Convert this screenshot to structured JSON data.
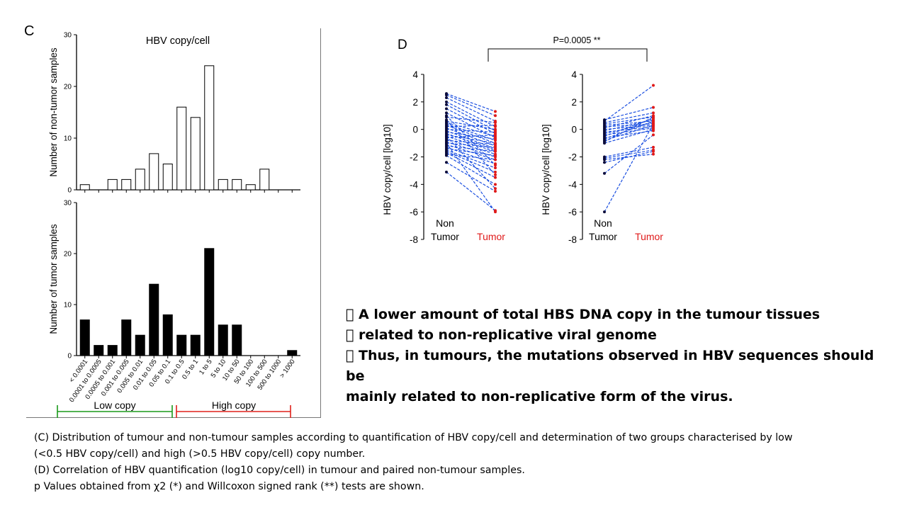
{
  "panel_c": {
    "letter": "C",
    "legend_low": "Low copy",
    "legend_high": "High copy",
    "low_color": "#1a9a1a",
    "high_color": "#e0201a"
  },
  "panel_d": {
    "letter": "D",
    "pvalue": "P=0.0005 **",
    "xlabel_non": [
      "Non",
      "Tumor"
    ],
    "xlabel_tumor": "Tumor",
    "tumor_color": "#e01a1a",
    "line_color": "#1b4fe0"
  },
  "bullets": [
    " A lower amount of total HBS DNA copy in the tumour tissues",
    " related to non-replicative viral genome",
    " Thus, in tumours, the mutations observed in HBV sequences should be",
    "mainly related to non-replicative form of the virus."
  ],
  "caption": [
    "(C) Distribution of tumour and non-tumour samples according to quantification of HBV copy/cell and determination of two groups characterised by low",
    "(<0.5 HBV copy/cell) and high (>0.5 HBV copy/cell) copy number.",
    "(D) Correlation of HBV quantification (log10 copy/cell) in tumour and paired non-tumour samples.",
    "p Values obtained from χ2 (*) and Willcoxon signed rank (**) tests are shown."
  ],
  "chart_data": [
    {
      "type": "bar",
      "title": "HBV copy/cell",
      "ylabel": "Number of non-tumor samples",
      "categories": [
        "< 0.0001",
        "0.0001 to 0.0005",
        "0.0005 to 0.001",
        "0.001 to 0.005",
        "0.005 to 0.01",
        "0.01 to 0.05",
        "0.05 to 0.1",
        "0.1 to 0.5",
        "0.5 to 1",
        "1 to 5",
        "5 to 10",
        "10 to 50",
        "50 to 100",
        "100 to 500",
        "500 to 1000",
        "> 1000"
      ],
      "values": [
        1,
        0,
        2,
        2,
        4,
        7,
        5,
        16,
        14,
        24,
        2,
        2,
        1,
        4,
        0,
        0
      ],
      "ylim": [
        0,
        30
      ],
      "yticks": [
        0,
        10,
        20,
        30
      ],
      "fill": "#ffffff"
    },
    {
      "type": "bar",
      "ylabel": "Number of tumor samples",
      "categories": [
        "< 0.0001",
        "0.0001 to 0.0005",
        "0.0005 to 0.001",
        "0.001 to 0.005",
        "0.005 to 0.01",
        "0.01 to 0.05",
        "0.05 to 0.1",
        "0.1 to 0.5",
        "0.5 to 1",
        "1 to 5",
        "5 to 10",
        "10 to 50",
        "50 to 100",
        "100 to 500",
        "500 to 1000",
        "> 1000"
      ],
      "values": [
        7,
        2,
        2,
        7,
        4,
        14,
        8,
        4,
        4,
        21,
        6,
        6,
        0,
        0,
        0,
        1
      ],
      "ylim": [
        0,
        30
      ],
      "yticks": [
        0,
        10,
        20,
        30
      ],
      "fill": "#000000"
    },
    {
      "type": "line",
      "ylabel": "HBV copy/cell [log10]",
      "x": [
        "Non Tumor",
        "Tumor"
      ],
      "ylim": [
        -8,
        4
      ],
      "yticks": [
        -8,
        -6,
        -4,
        -2,
        0,
        2,
        4
      ],
      "pairs": [
        [
          2.6,
          1.3
        ],
        [
          2.5,
          1.0
        ],
        [
          2.3,
          0.6
        ],
        [
          2.0,
          0.2
        ],
        [
          1.8,
          -0.1
        ],
        [
          1.5,
          -0.3
        ],
        [
          1.2,
          -0.6
        ],
        [
          0.9,
          0.5
        ],
        [
          0.6,
          0.0
        ],
        [
          0.5,
          -0.5
        ],
        [
          0.4,
          -0.8
        ],
        [
          0.3,
          -1.0
        ],
        [
          0.2,
          0.3
        ],
        [
          0.1,
          -1.2
        ],
        [
          0.0,
          -0.2
        ],
        [
          -0.1,
          -1.4
        ],
        [
          -0.2,
          -0.7
        ],
        [
          -0.3,
          -1.5
        ],
        [
          -0.4,
          -1.0
        ],
        [
          -0.5,
          -1.6
        ],
        [
          -0.6,
          -0.4
        ],
        [
          -0.7,
          -1.8
        ],
        [
          -0.8,
          -1.1
        ],
        [
          -0.9,
          -2.0
        ],
        [
          -1.0,
          -1.3
        ],
        [
          -1.1,
          -2.2
        ],
        [
          -1.2,
          -1.6
        ],
        [
          -1.3,
          -2.5
        ],
        [
          -1.4,
          -1.9
        ],
        [
          -1.5,
          -2.8
        ],
        [
          -1.6,
          -3.1
        ],
        [
          -1.7,
          -3.5
        ],
        [
          -1.8,
          -2.2
        ],
        [
          -1.9,
          -4.0
        ],
        [
          -2.4,
          -4.5
        ],
        [
          -3.1,
          -5.9
        ],
        [
          -1.0,
          -6.0
        ],
        [
          0.7,
          -3.3
        ],
        [
          1.0,
          -2.6
        ],
        [
          -0.5,
          -4.3
        ]
      ]
    },
    {
      "type": "line",
      "ylabel": "HBV copy/cell [log10]",
      "x": [
        "Non Tumor",
        "Tumor"
      ],
      "ylim": [
        -8,
        4
      ],
      "yticks": [
        -8,
        -6,
        -4,
        -2,
        0,
        2,
        4
      ],
      "pairs": [
        [
          0.7,
          1.6
        ],
        [
          0.6,
          3.2
        ],
        [
          0.5,
          1.2
        ],
        [
          0.4,
          0.9
        ],
        [
          0.3,
          0.6
        ],
        [
          0.2,
          0.4
        ],
        [
          0.1,
          1.0
        ],
        [
          0.0,
          0.3
        ],
        [
          -0.1,
          0.7
        ],
        [
          -0.2,
          0.2
        ],
        [
          -0.3,
          0.5
        ],
        [
          -0.4,
          0.1
        ],
        [
          -0.5,
          0.8
        ],
        [
          -0.6,
          -0.1
        ],
        [
          -0.7,
          0.6
        ],
        [
          -0.8,
          0.3
        ],
        [
          -0.9,
          0.9
        ],
        [
          -1.0,
          0.0
        ],
        [
          -2.0,
          -1.3
        ],
        [
          -2.1,
          -1.5
        ],
        [
          -2.2,
          -1.8
        ],
        [
          -2.4,
          -1.6
        ],
        [
          -3.2,
          -0.4
        ],
        [
          -6.0,
          0.4
        ]
      ]
    }
  ]
}
